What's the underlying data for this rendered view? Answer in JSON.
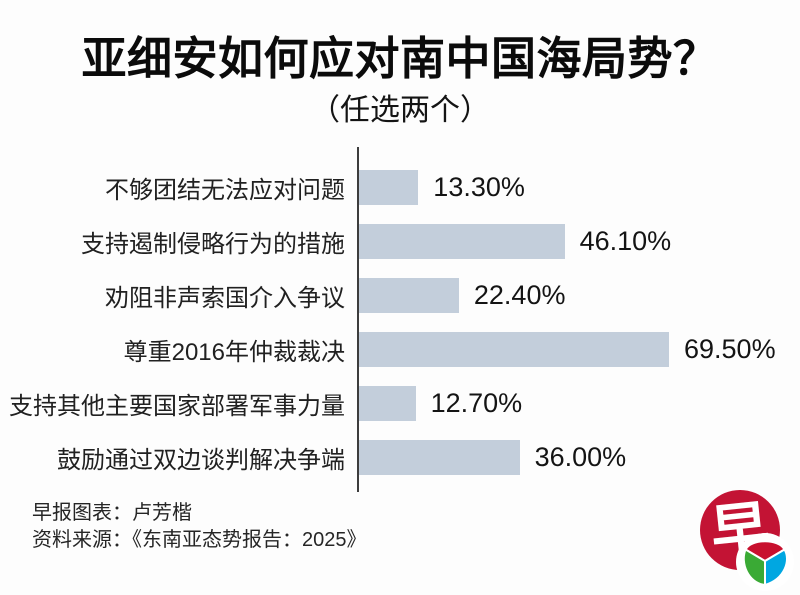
{
  "title": "亚细安如何应对南中国海局势？",
  "subtitle": "（任选两个）",
  "chart_data": {
    "type": "bar",
    "orientation": "horizontal",
    "categories": [
      "不够团结无法应对问题",
      "支持遏制侵略行为的措施",
      "劝阻非声索国介入争议",
      "尊重2016年仲裁裁决",
      "支持其他主要国家部署军事力量",
      "鼓励通过双边谈判解决争端"
    ],
    "values": [
      13.3,
      46.1,
      22.4,
      69.5,
      12.7,
      36.0
    ],
    "value_labels": [
      "13.30%",
      "46.10%",
      "22.40%",
      "69.50%",
      "12.70%",
      "36.00%"
    ],
    "xlim": [
      0,
      75
    ],
    "grid": false,
    "legend": false,
    "bar_color": "#c3cedb",
    "axis_color": "#3d3d3d"
  },
  "footer": {
    "credit": "早报图表：卢芳楷",
    "source": "资料来源：《东南亚态势报告：2025》"
  },
  "logo": {
    "character": "早",
    "circle_color": "#c31334",
    "petal_red": "#c8102e",
    "petal_green": "#3aaa35",
    "petal_blue": "#00a7e1"
  }
}
